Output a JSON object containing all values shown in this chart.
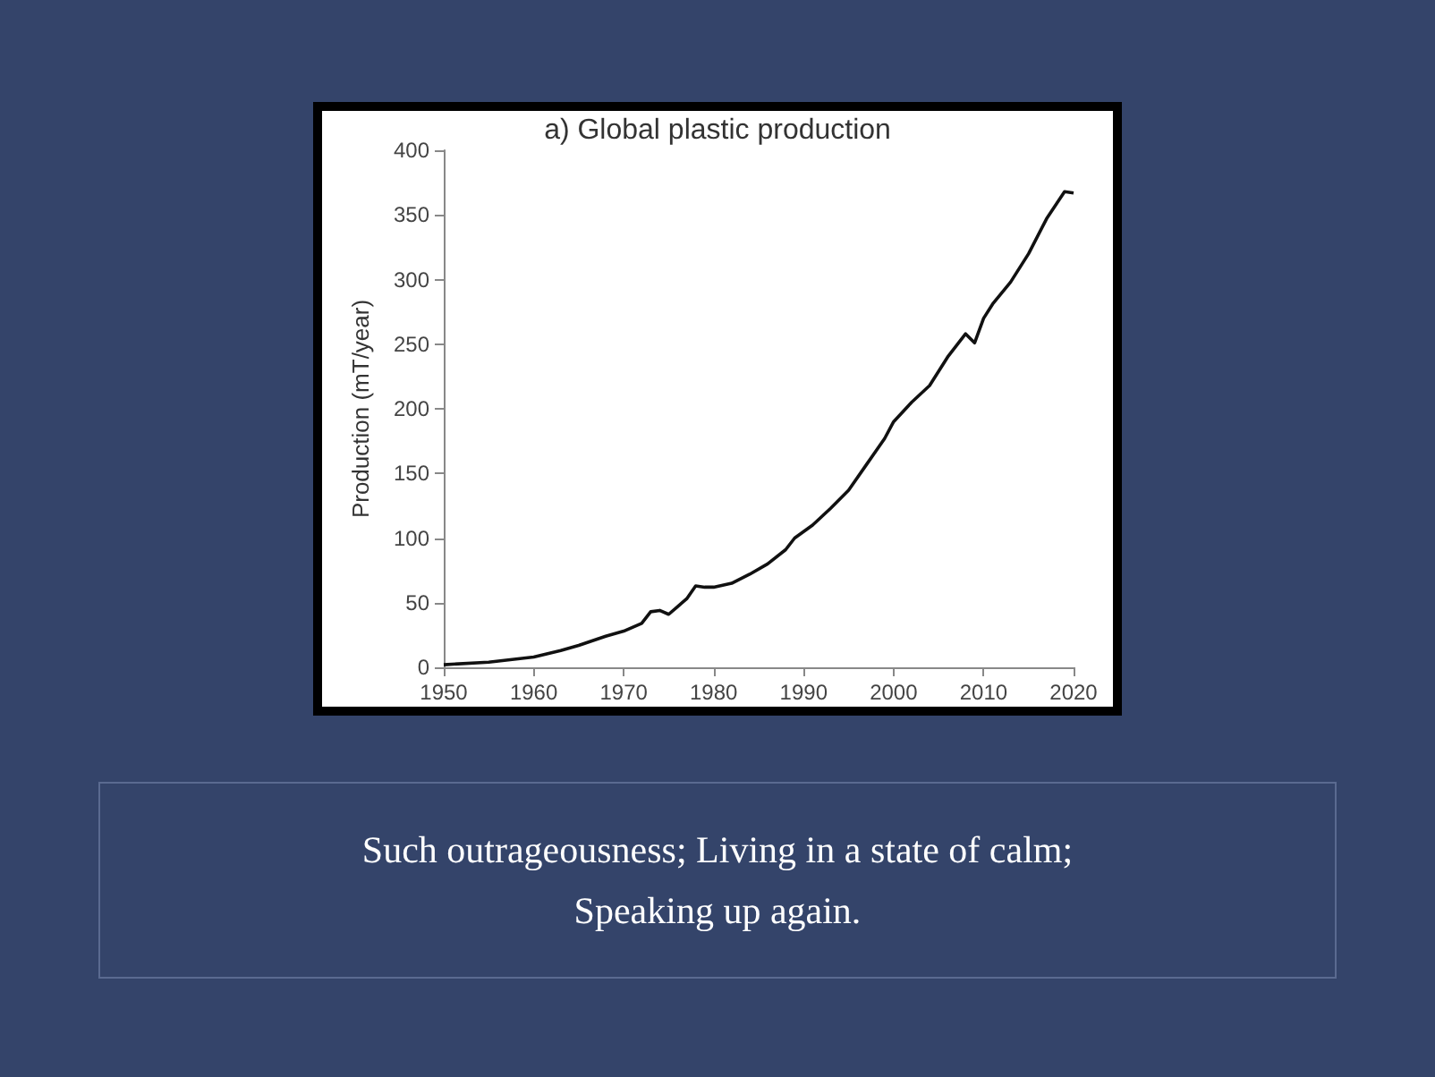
{
  "chart_data": {
    "type": "line",
    "title": "a) Global plastic production",
    "ylabel": "Production (mT/year)",
    "x": [
      1950,
      1955,
      1960,
      1963,
      1965,
      1968,
      1970,
      1972,
      1973,
      1974,
      1975,
      1976,
      1977,
      1978,
      1979,
      1980,
      1982,
      1984,
      1986,
      1988,
      1989,
      1991,
      1993,
      1995,
      1997,
      1999,
      2000,
      2002,
      2004,
      2006,
      2008,
      2009,
      2010,
      2011,
      2013,
      2015,
      2017,
      2019,
      2020
    ],
    "series": [
      {
        "color": "#111111",
        "values": [
          2,
          4,
          8,
          13,
          17,
          24,
          28,
          34,
          43,
          44,
          41,
          47,
          53,
          63,
          62,
          62,
          65,
          72,
          80,
          91,
          100,
          110,
          123,
          137,
          157,
          177,
          190,
          205,
          218,
          240,
          258,
          251,
          270,
          281,
          298,
          320,
          347,
          368,
          367
        ]
      }
    ],
    "xlim": [
      1950,
      2020
    ],
    "xticks": [
      1950,
      1960,
      1970,
      1980,
      1990,
      2000,
      2010,
      2020
    ],
    "ylim": [
      0,
      400
    ],
    "yticks": [
      0,
      50,
      100,
      150,
      200,
      250,
      300,
      350,
      400
    ],
    "grid": false,
    "marker": "none",
    "line_style": "solid",
    "annotations": [
      "Such outrageousness;  Living in a state of calm;",
      "Speaking up again."
    ]
  }
}
